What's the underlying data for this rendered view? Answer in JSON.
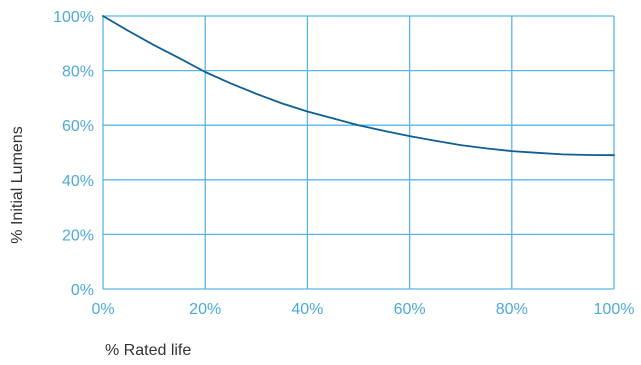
{
  "chart_data": {
    "type": "line",
    "title": "",
    "xlabel": "% Rated life",
    "ylabel": "% Initial Lumens",
    "xlim": [
      0,
      100
    ],
    "ylim": [
      0,
      100
    ],
    "x_ticks": [
      "0%",
      "20%",
      "40%",
      "60%",
      "80%",
      "100%"
    ],
    "y_ticks": [
      "0%",
      "20%",
      "40%",
      "60%",
      "80%",
      "100%"
    ],
    "grid": true,
    "legend": "none",
    "series": [
      {
        "x": [
          0,
          5,
          10,
          15,
          20,
          25,
          30,
          35,
          40,
          45,
          50,
          55,
          60,
          65,
          70,
          75,
          80,
          85,
          90,
          95,
          100
        ],
        "y": [
          100,
          94.5,
          89.3,
          84.5,
          79.5,
          75.3,
          71.5,
          68.0,
          65.0,
          62.5,
          60.0,
          57.9,
          56.0,
          54.3,
          52.7,
          51.5,
          50.5,
          49.9,
          49.3,
          49.1,
          49.0
        ]
      }
    ]
  },
  "colors": {
    "grid": "#5bb6e3",
    "axis_text": "#4ea9d8",
    "line": "#0f5f93",
    "label_text": "#333333"
  }
}
